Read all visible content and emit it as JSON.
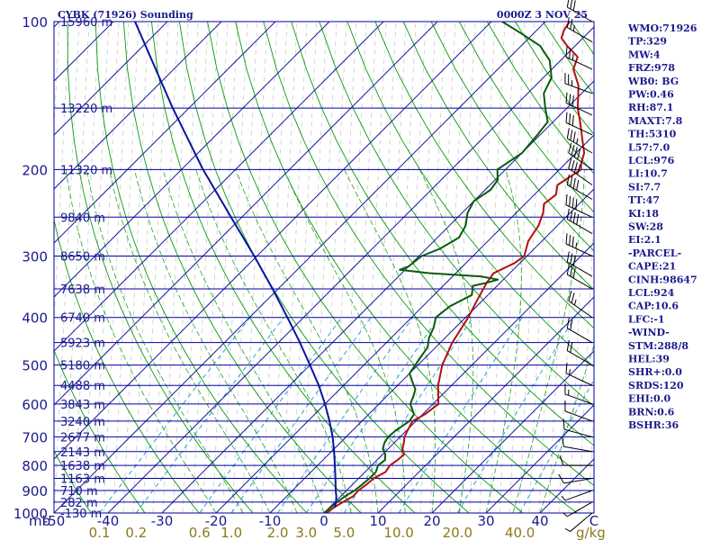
{
  "header": {
    "station": "CYBK (71926) Sounding",
    "time": "0000Z  3 NOV 25"
  },
  "chart_data": {
    "type": "skew-t",
    "title": "CYBK (71926) Sounding",
    "pressure_unit": "mb",
    "mixing_unit": "g/kg",
    "pressure_range": [
      1000,
      100
    ],
    "temp_range": [
      -50,
      50
    ],
    "pressure_ticks": [
      {
        "p": 100,
        "label": "100"
      },
      {
        "p": 200,
        "label": "200"
      },
      {
        "p": 300,
        "label": "300"
      },
      {
        "p": 400,
        "label": "400"
      },
      {
        "p": 500,
        "label": "500"
      },
      {
        "p": 600,
        "label": "600"
      },
      {
        "p": 700,
        "label": "700"
      },
      {
        "p": 800,
        "label": "800"
      },
      {
        "p": 900,
        "label": "900"
      },
      {
        "p": 1000,
        "label": "1000"
      }
    ],
    "height_levels": [
      {
        "p": 100,
        "label": "15960 m"
      },
      {
        "p": 150,
        "label": "13220 m"
      },
      {
        "p": 200,
        "label": "11320 m"
      },
      {
        "p": 250,
        "label": "9840 m"
      },
      {
        "p": 300,
        "label": "8650 m"
      },
      {
        "p": 350,
        "label": "7638 m"
      },
      {
        "p": 400,
        "label": "6740 m"
      },
      {
        "p": 450,
        "label": "5923 m"
      },
      {
        "p": 500,
        "label": "5180 m"
      },
      {
        "p": 550,
        "label": "4488 m"
      },
      {
        "p": 600,
        "label": "3843 m"
      },
      {
        "p": 650,
        "label": "3240 m"
      },
      {
        "p": 700,
        "label": "2677 m"
      },
      {
        "p": 750,
        "label": "2143 m"
      },
      {
        "p": 800,
        "label": "1638 m"
      },
      {
        "p": 850,
        "label": "1163 m"
      },
      {
        "p": 900,
        "label": "710 m"
      },
      {
        "p": 950,
        "label": "282 m"
      },
      {
        "p": 1000,
        "label": "-130 m"
      }
    ],
    "temp_ticks": [
      {
        "t": -50,
        "label": "-50"
      },
      {
        "t": -40,
        "label": "-40"
      },
      {
        "t": -30,
        "label": "-30"
      },
      {
        "t": -20,
        "label": "-20"
      },
      {
        "t": -10,
        "label": "-10"
      },
      {
        "t": 0,
        "label": "0"
      },
      {
        "t": 10,
        "label": "10"
      },
      {
        "t": 20,
        "label": "20"
      },
      {
        "t": 30,
        "label": "30"
      },
      {
        "t": 40,
        "label": "40"
      },
      {
        "t": 50,
        "label": "C"
      }
    ],
    "mixing_ratios": [
      {
        "w": 0.1,
        "label": "0.1"
      },
      {
        "w": 0.2,
        "label": "0.2"
      },
      {
        "w": 0.6,
        "label": "0.6"
      },
      {
        "w": 1.0,
        "label": "1.0"
      },
      {
        "w": 2.0,
        "label": "2.0"
      },
      {
        "w": 3.0,
        "label": "3.0"
      },
      {
        "w": 5.0,
        "label": "5.0"
      },
      {
        "w": 10.0,
        "label": "10.0"
      },
      {
        "w": 20.0,
        "label": "20.0"
      },
      {
        "w": 40.0,
        "label": "40.0"
      }
    ],
    "series": [
      {
        "name": "temperature",
        "color": "#b01010",
        "points": [
          [
            1000,
            0.5
          ],
          [
            975,
            0.8
          ],
          [
            950,
            1.5
          ],
          [
            925,
            2.3
          ],
          [
            900,
            2.2
          ],
          [
            875,
            2.6
          ],
          [
            850,
            2.8
          ],
          [
            825,
            3.8
          ],
          [
            800,
            3.4
          ],
          [
            780,
            3.8
          ],
          [
            760,
            4.0
          ],
          [
            740,
            2.6
          ],
          [
            720,
            1.8
          ],
          [
            700,
            0.8
          ],
          [
            680,
            0.2
          ],
          [
            650,
            -0.6
          ],
          [
            630,
            0.4
          ],
          [
            600,
            1.0
          ],
          [
            550,
            -2.5
          ],
          [
            500,
            -5.5
          ],
          [
            450,
            -7.8
          ],
          [
            420,
            -8.8
          ],
          [
            400,
            -9.5
          ],
          [
            370,
            -11.0
          ],
          [
            340,
            -12.5
          ],
          [
            325,
            -13.0
          ],
          [
            310,
            -11.0
          ],
          [
            300,
            -10.5
          ],
          [
            280,
            -12.5
          ],
          [
            260,
            -13.5
          ],
          [
            245,
            -15.0
          ],
          [
            235,
            -16.5
          ],
          [
            225,
            -16.0
          ],
          [
            215,
            -17.5
          ],
          [
            200,
            -16.0
          ],
          [
            195,
            -17.0
          ],
          [
            185,
            -18.5
          ],
          [
            175,
            -21.0
          ],
          [
            160,
            -25.0
          ],
          [
            150,
            -28.0
          ],
          [
            135,
            -32.0
          ],
          [
            125,
            -36.0
          ],
          [
            118,
            -37.5
          ],
          [
            112,
            -41.5
          ],
          [
            108,
            -44.0
          ],
          [
            104,
            -45.0
          ],
          [
            100,
            -45.5
          ]
        ]
      },
      {
        "name": "dewpoint",
        "color": "#0a5a0a",
        "points": [
          [
            1000,
            0.0
          ],
          [
            975,
            0.2
          ],
          [
            950,
            0.4
          ],
          [
            925,
            0.8
          ],
          [
            900,
            1.5
          ],
          [
            875,
            1.8
          ],
          [
            850,
            2.0
          ],
          [
            825,
            2.0
          ],
          [
            800,
            1.2
          ],
          [
            780,
            1.5
          ],
          [
            760,
            0.5
          ],
          [
            740,
            -1.0
          ],
          [
            720,
            -1.8
          ],
          [
            700,
            -2.2
          ],
          [
            680,
            -2.0
          ],
          [
            650,
            -1.2
          ],
          [
            630,
            -1.6
          ],
          [
            600,
            -4.2
          ],
          [
            580,
            -5.0
          ],
          [
            560,
            -6.0
          ],
          [
            540,
            -8.0
          ],
          [
            520,
            -10.0
          ],
          [
            500,
            -10.5
          ],
          [
            480,
            -11.0
          ],
          [
            460,
            -11.5
          ],
          [
            440,
            -13.0
          ],
          [
            420,
            -14.0
          ],
          [
            400,
            -15.5
          ],
          [
            380,
            -15.0
          ],
          [
            360,
            -13.0
          ],
          [
            345,
            -14.5
          ],
          [
            340,
            -12.5
          ],
          [
            335,
            -11.0
          ],
          [
            330,
            -14.8
          ],
          [
            325,
            -25.0
          ],
          [
            320,
            -31.0
          ],
          [
            315,
            -30.0
          ],
          [
            300,
            -29.5
          ],
          [
            290,
            -27.5
          ],
          [
            275,
            -26.0
          ],
          [
            260,
            -27.0
          ],
          [
            245,
            -29.0
          ],
          [
            232,
            -30.0
          ],
          [
            220,
            -29.0
          ],
          [
            210,
            -29.5
          ],
          [
            200,
            -31.5
          ],
          [
            185,
            -30.0
          ],
          [
            170,
            -30.5
          ],
          [
            160,
            -31.0
          ],
          [
            150,
            -34.0
          ],
          [
            140,
            -37.0
          ],
          [
            130,
            -38.5
          ],
          [
            120,
            -42.0
          ],
          [
            112,
            -46.5
          ],
          [
            106,
            -52.0
          ],
          [
            100,
            -58.0
          ]
        ]
      }
    ],
    "parcel": {
      "name": "parcel",
      "color": "#0a14a0",
      "points": [
        [
          975,
          1.0
        ],
        [
          950,
          0.2
        ],
        [
          925,
          -0.8
        ],
        [
          900,
          -2.0
        ],
        [
          850,
          -4.3
        ],
        [
          800,
          -6.8
        ],
        [
          750,
          -9.5
        ],
        [
          700,
          -12.5
        ],
        [
          650,
          -16.0
        ],
        [
          600,
          -20.0
        ],
        [
          550,
          -24.6
        ],
        [
          500,
          -30.0
        ],
        [
          450,
          -36.0
        ],
        [
          400,
          -43.0
        ],
        [
          350,
          -51.0
        ],
        [
          300,
          -60.5
        ],
        [
          250,
          -72.0
        ],
        [
          200,
          -86.0
        ],
        [
          150,
          -103.0
        ],
        [
          100,
          -126.0
        ]
      ]
    },
    "wind_barbs": [
      {
        "p": 100,
        "dir": 300,
        "kt": 30
      },
      {
        "p": 110,
        "dir": 300,
        "kt": 25
      },
      {
        "p": 125,
        "dir": 295,
        "kt": 25
      },
      {
        "p": 140,
        "dir": 290,
        "kt": 25
      },
      {
        "p": 155,
        "dir": 295,
        "kt": 30
      },
      {
        "p": 170,
        "dir": 295,
        "kt": 30
      },
      {
        "p": 185,
        "dir": 300,
        "kt": 35
      },
      {
        "p": 200,
        "dir": 305,
        "kt": 40
      },
      {
        "p": 215,
        "dir": 305,
        "kt": 40
      },
      {
        "p": 230,
        "dir": 300,
        "kt": 40
      },
      {
        "p": 250,
        "dir": 295,
        "kt": 40
      },
      {
        "p": 270,
        "dir": 300,
        "kt": 40
      },
      {
        "p": 300,
        "dir": 295,
        "kt": 35
      },
      {
        "p": 330,
        "dir": 300,
        "kt": 30
      },
      {
        "p": 350,
        "dir": 300,
        "kt": 30
      },
      {
        "p": 400,
        "dir": 305,
        "kt": 25
      },
      {
        "p": 450,
        "dir": 300,
        "kt": 20
      },
      {
        "p": 500,
        "dir": 300,
        "kt": 20
      },
      {
        "p": 550,
        "dir": 295,
        "kt": 15
      },
      {
        "p": 600,
        "dir": 290,
        "kt": 15
      },
      {
        "p": 650,
        "dir": 290,
        "kt": 10
      },
      {
        "p": 700,
        "dir": 285,
        "kt": 10
      },
      {
        "p": 750,
        "dir": 280,
        "kt": 10
      },
      {
        "p": 800,
        "dir": 270,
        "kt": 10
      },
      {
        "p": 850,
        "dir": 260,
        "kt": 10
      },
      {
        "p": 900,
        "dir": 250,
        "kt": 5
      },
      {
        "p": 950,
        "dir": 240,
        "kt": 5
      },
      {
        "p": 1000,
        "dir": 230,
        "kt": 5
      }
    ]
  },
  "indices": [
    "WMO:71926",
    "TP:329",
    "MW:4",
    "FRZ:978",
    "WB0: BG",
    "PW:0.46",
    "RH:87.1",
    "MAXT:7.8",
    "TH:5310",
    "L57:7.0",
    "LCL:976",
    "LI:10.7",
    "SI:7.7",
    "TT:47",
    "KI:18",
    "SW:28",
    "EI:2.1",
    "-PARCEL-",
    "CAPE:21",
    "CINH:98647",
    "LCL:924",
    "CAP:10.6",
    "LFC:-1",
    "-WIND-",
    "STM:288/8",
    "HEL:39",
    "SHR+:0.0",
    "SRDS:120",
    "EHI:0.0",
    "BRN:0.6",
    "BSHR:36"
  ],
  "colors": {
    "isobar": "#0000a0",
    "isotherm": "#1a1aa0",
    "dry_adiabat": "#0a9a0a",
    "moist_adiabat": "#0a9a0a",
    "mixing_line": "#2aa0d0",
    "shade": "#909090",
    "temperature": "#b01010",
    "dewpoint": "#0a5a0a",
    "parcel": "#0a14a0",
    "wind": "#000000"
  }
}
